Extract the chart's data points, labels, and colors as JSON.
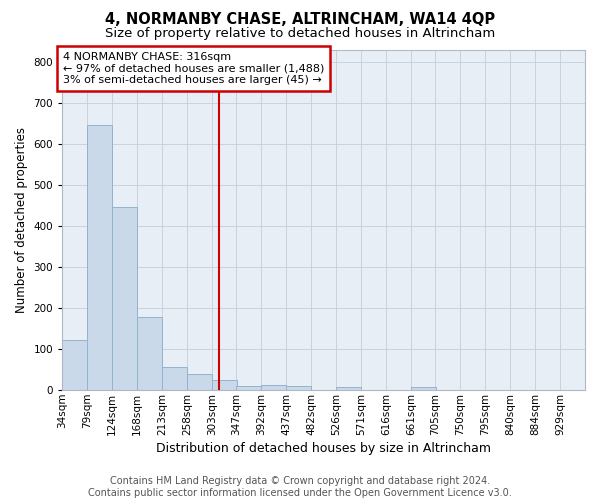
{
  "title": "4, NORMANBY CHASE, ALTRINCHAM, WA14 4QP",
  "subtitle": "Size of property relative to detached houses in Altrincham",
  "xlabel": "Distribution of detached houses by size in Altrincham",
  "ylabel": "Number of detached properties",
  "footer_line1": "Contains HM Land Registry data © Crown copyright and database right 2024.",
  "footer_line2": "Contains public sector information licensed under the Open Government Licence v3.0.",
  "annotation_line1": "4 NORMANBY CHASE: 316sqm",
  "annotation_line2": "← 97% of detached houses are smaller (1,488)",
  "annotation_line3": "3% of semi-detached houses are larger (45) →",
  "bar_color": "#c9d9ea",
  "bar_edge_color": "#92b4cc",
  "vline_color": "#cc0000",
  "annotation_box_edge_color": "#cc0000",
  "background_color": "#ffffff",
  "plot_bg_color": "#e8eef5",
  "grid_color": "#c5cdd8",
  "categories": [
    "34sqm",
    "79sqm",
    "124sqm",
    "168sqm",
    "213sqm",
    "258sqm",
    "303sqm",
    "347sqm",
    "392sqm",
    "437sqm",
    "482sqm",
    "526sqm",
    "571sqm",
    "616sqm",
    "661sqm",
    "705sqm",
    "750sqm",
    "795sqm",
    "840sqm",
    "884sqm",
    "929sqm"
  ],
  "bin_lefts": [
    34,
    79,
    124,
    168,
    213,
    258,
    303,
    347,
    392,
    437,
    482,
    526,
    571,
    616,
    661,
    705,
    750,
    795,
    840,
    884,
    929
  ],
  "bin_width": 45,
  "values": [
    122,
    648,
    447,
    179,
    57,
    40,
    25,
    11,
    13,
    11,
    0,
    8,
    0,
    0,
    8,
    0,
    0,
    0,
    0,
    0,
    0
  ],
  "ylim": [
    0,
    830
  ],
  "yticks": [
    0,
    100,
    200,
    300,
    400,
    500,
    600,
    700,
    800
  ],
  "vline_x": 316,
  "title_fontsize": 10.5,
  "subtitle_fontsize": 9.5,
  "xlabel_fontsize": 9,
  "ylabel_fontsize": 8.5,
  "tick_fontsize": 7.5,
  "annotation_fontsize": 8,
  "footer_fontsize": 7
}
